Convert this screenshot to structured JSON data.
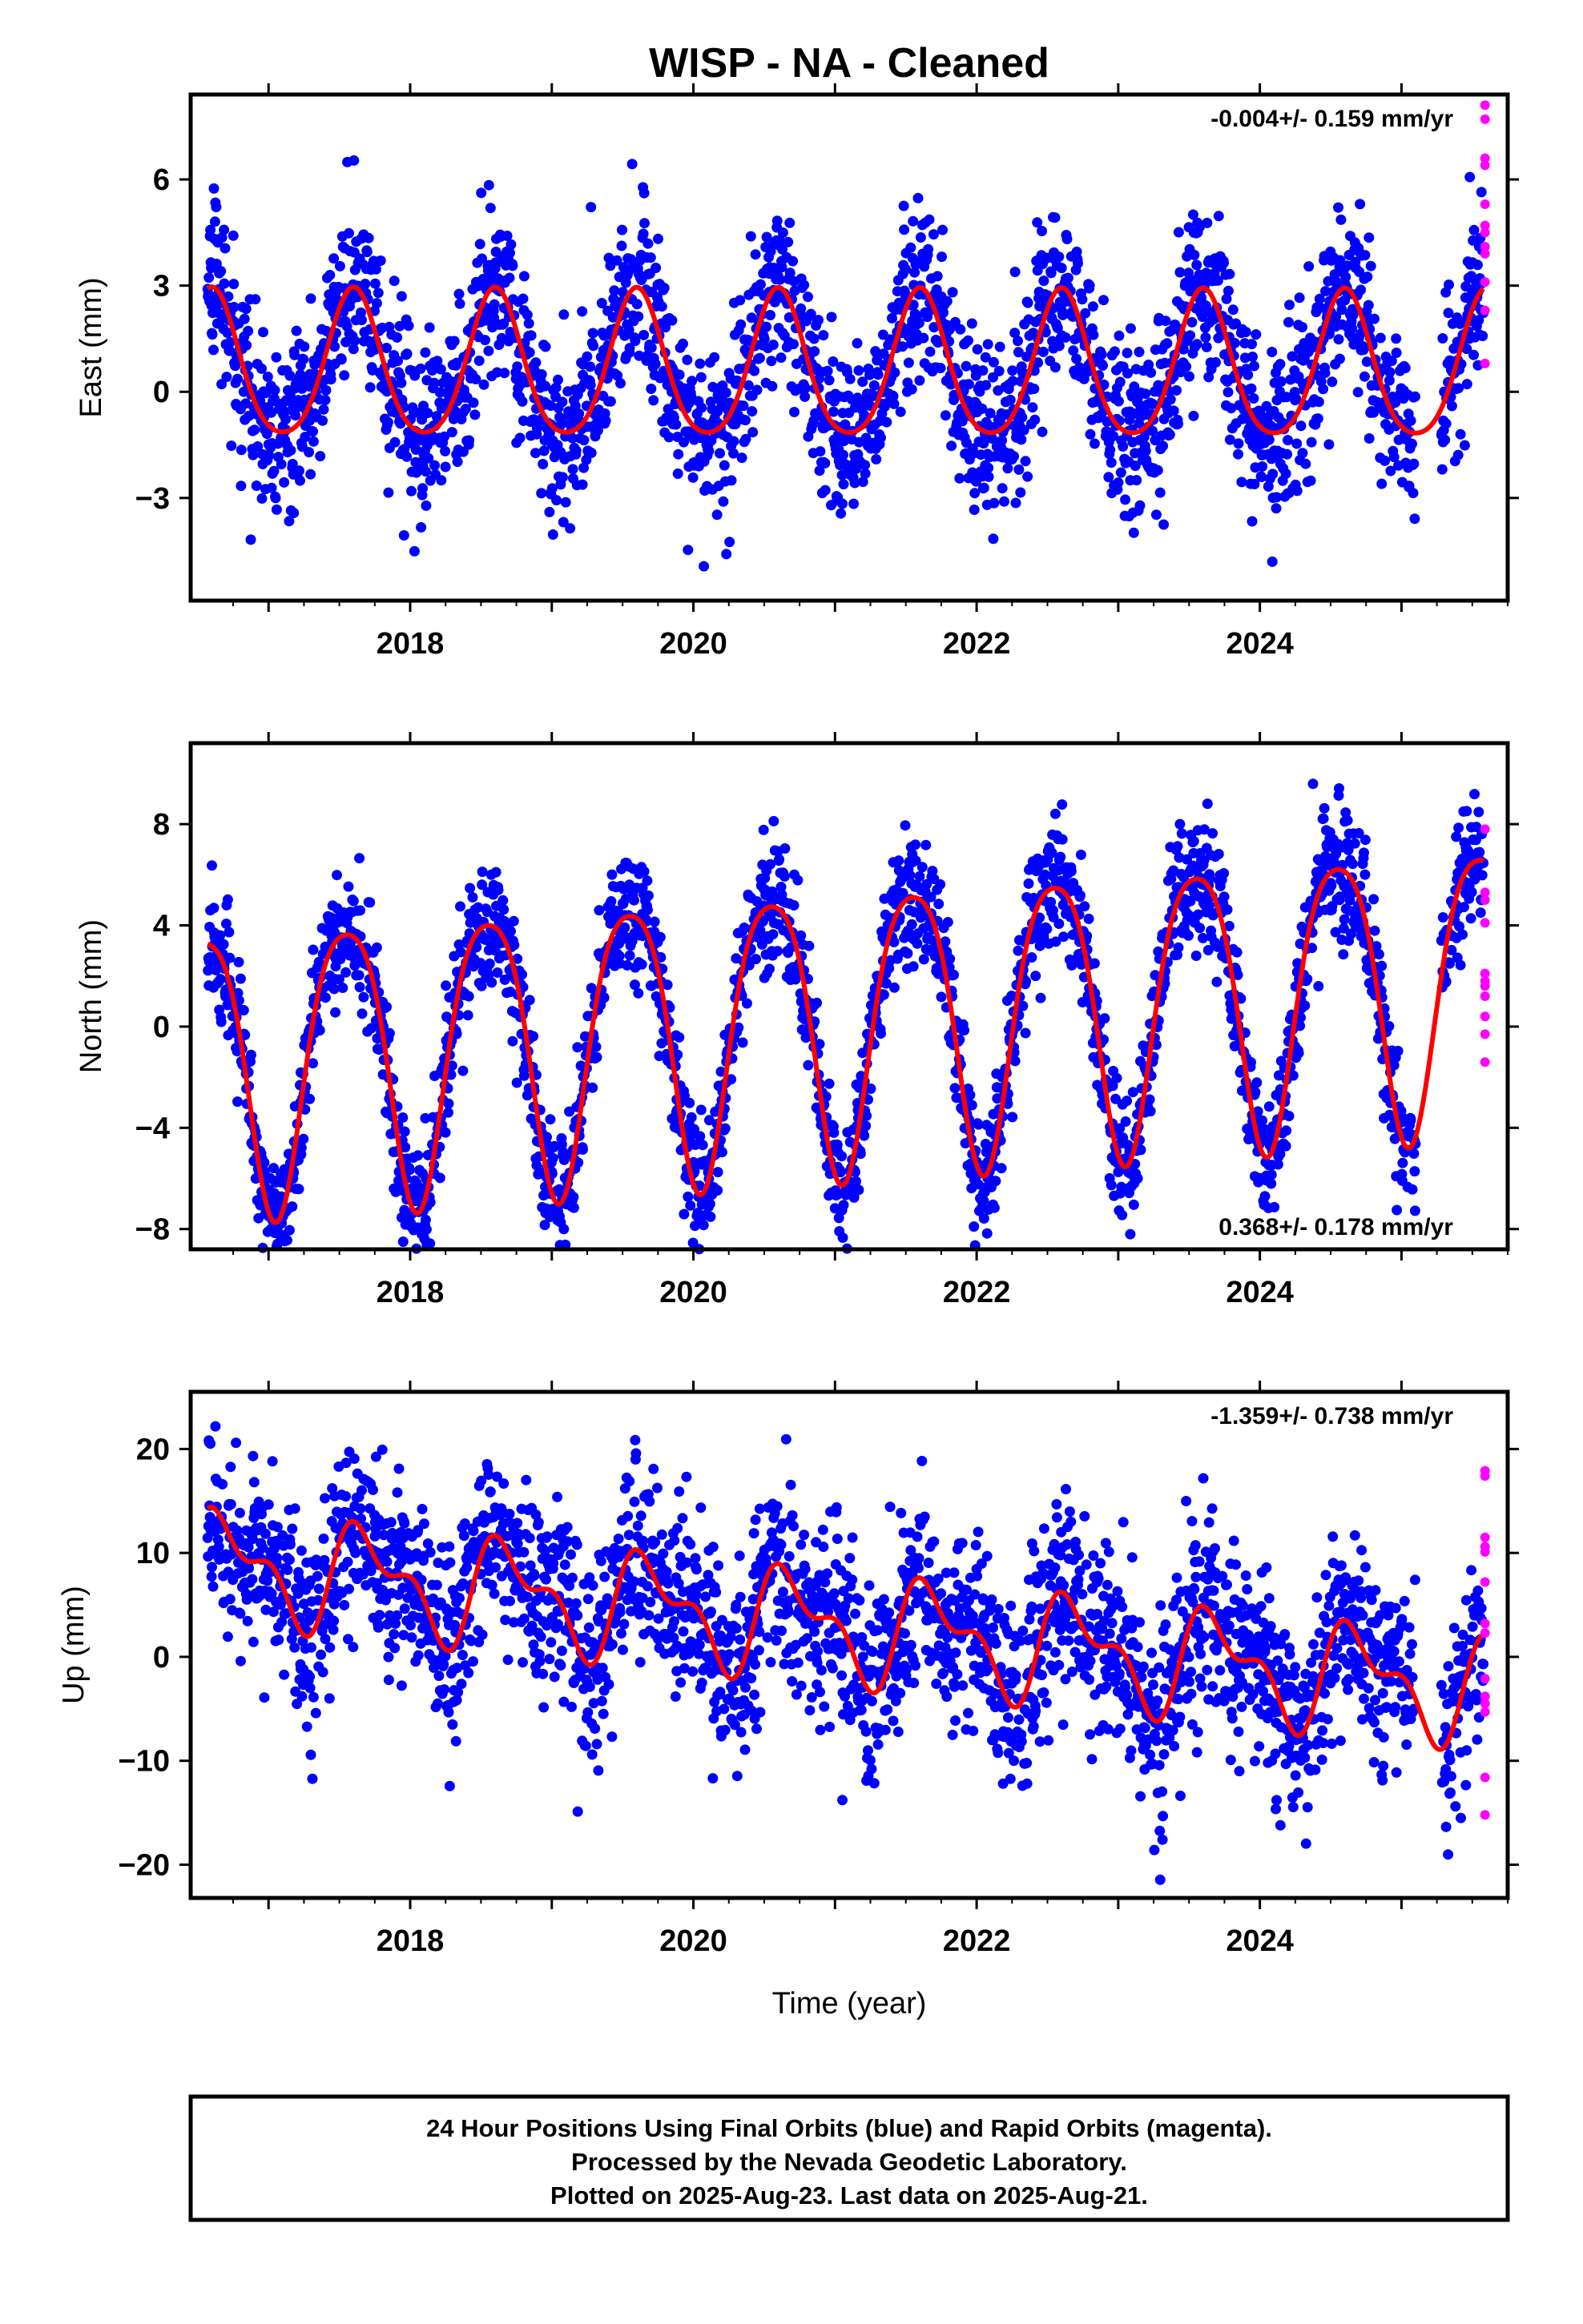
{
  "title": "WISP  - NA - Cleaned",
  "x_axis_label": "Time (year)",
  "footer": {
    "line1": "24 Hour Positions Using Final Orbits (blue) and Rapid Orbits (magenta).",
    "line2": "Processed by the Nevada Geodetic Laboratory.",
    "line3": "Plotted on 2025-Aug-23. Last data on 2025-Aug-21."
  },
  "colors": {
    "final_orbits": "#0000ff",
    "rapid_orbits": "#ff00ff",
    "model_fit": "#ff0000",
    "frame": "#000000"
  },
  "chart_data": [
    {
      "id": "east",
      "type": "scatter",
      "ylabel": "East (mm)",
      "rate_label": "-0.004+/- 0.159 mm/yr",
      "rate_position": "top-right",
      "xlim": [
        2016.45,
        2025.75
      ],
      "ylim": [
        -5.9,
        8.4
      ],
      "xticks": [
        2018,
        2020,
        2022,
        2024
      ],
      "xtick_labels": [
        "2018",
        "2020",
        "2022",
        "2024"
      ],
      "yticks": [
        -3,
        0,
        3,
        6
      ],
      "ytick_labels": [
        "−3",
        "0",
        "3",
        "6"
      ],
      "data_start": 2016.57,
      "data_end": 2025.58,
      "gap": [
        2025.1,
        2025.28
      ],
      "model": {
        "offset": 0.6,
        "annual_amp": 2.05,
        "annual_peak": 0.6,
        "semi_amp": 0.3,
        "semi_peak": 0.1,
        "trend": -0.004
      },
      "scatter_sigma": 1.2,
      "rapid_values": [
        8.1,
        7.7,
        6.6,
        6.4,
        5.3,
        4.7,
        4.5,
        4.1,
        3.9,
        3.1,
        2.3,
        0.8
      ],
      "rapid_x": 2025.59
    },
    {
      "id": "north",
      "type": "scatter",
      "ylabel": "North (mm)",
      "rate_label": "0.368+/- 0.178 mm/yr",
      "rate_position": "bottom-right",
      "xlim": [
        2016.45,
        2025.75
      ],
      "ylim": [
        -8.8,
        11.2
      ],
      "xticks": [
        2018,
        2020,
        2022,
        2024
      ],
      "xtick_labels": [
        "2018",
        "2020",
        "2022",
        "2024"
      ],
      "yticks": [
        -8,
        -4,
        0,
        4,
        8
      ],
      "ytick_labels": [
        "−8",
        "−4",
        "0",
        "4",
        "8"
      ],
      "data_start": 2016.57,
      "data_end": 2025.58,
      "gap": [
        2025.1,
        2025.28
      ],
      "model": {
        "offset": 0.2,
        "annual_amp": 5.6,
        "annual_peak": 0.55,
        "semi_amp": 0.9,
        "semi_peak": 0.3,
        "trend": 0.368
      },
      "scatter_sigma": 1.25,
      "rapid_values": [
        7.8,
        5.3,
        5.0,
        4.1,
        2.1,
        1.8,
        1.6,
        1.2,
        0.4,
        -0.3,
        -1.4
      ],
      "rapid_x": 2025.59
    },
    {
      "id": "up",
      "type": "scatter",
      "ylabel": "Up (mm)",
      "rate_label": "-1.359+/- 0.738 mm/yr",
      "rate_position": "top-right",
      "xlim": [
        2016.45,
        2025.75
      ],
      "ylim": [
        -23.2,
        25.5
      ],
      "xticks": [
        2018,
        2020,
        2022,
        2024
      ],
      "xtick_labels": [
        "2018",
        "2020",
        "2022",
        "2024"
      ],
      "yticks": [
        -20,
        -10,
        0,
        10,
        20
      ],
      "ytick_labels": [
        "−20",
        "−10",
        "0",
        "10",
        "20"
      ],
      "data_start": 2016.57,
      "data_end": 2025.58,
      "gap": [
        2025.1,
        2025.28
      ],
      "model": {
        "offset": 3.0,
        "annual_amp": 4.3,
        "annual_peak": 0.7,
        "semi_amp": 2.4,
        "semi_peak": 0.05,
        "trend": -1.359
      },
      "scatter_sigma": 4.6,
      "rapid_values": [
        17.9,
        17.4,
        11.5,
        10.6,
        10.1,
        7.2,
        3.2,
        2.3,
        -2.1,
        -3.8,
        -4.5,
        -5.3,
        -11.6,
        -15.2
      ],
      "rapid_x": 2025.59
    }
  ]
}
